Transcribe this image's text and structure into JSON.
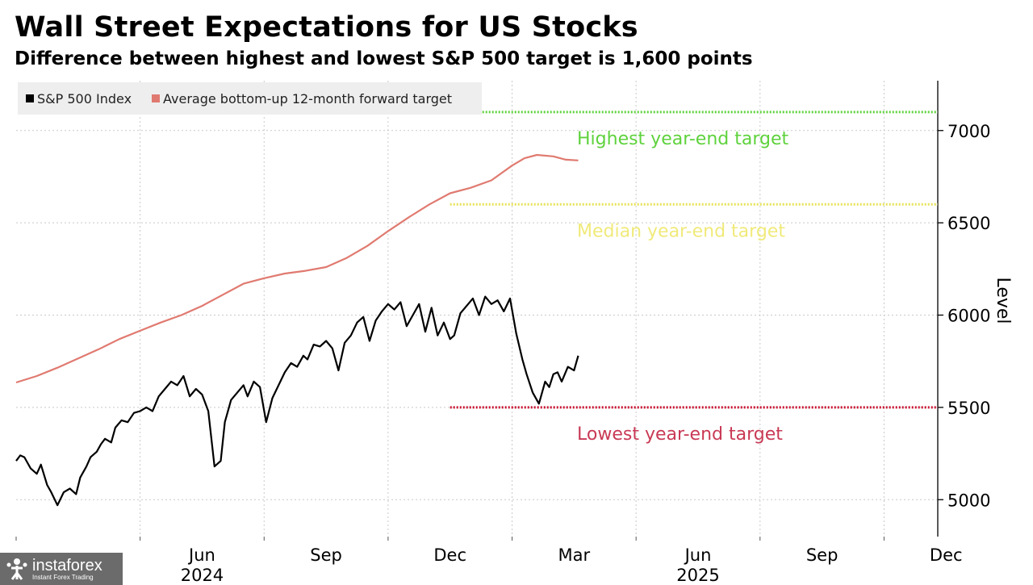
{
  "header": {
    "title": "Wall Street Expectations for US Stocks",
    "subtitle": "Difference between highest and lowest S&P 500 target is 1,600 points"
  },
  "watermark": {
    "brand": "instaforex",
    "tagline": "Instant Forex Trading",
    "icon": "people-logo-icon"
  },
  "chart_data": {
    "type": "line",
    "title": "Wall Street Expectations for US Stocks",
    "subtitle": "Difference between highest and lowest S&P 500 target is 1,600 points",
    "ylabel": "Level",
    "ylim": [
      4800,
      7270
    ],
    "yticks": [
      5000,
      5500,
      6000,
      6500,
      7000
    ],
    "xlim": [
      0,
      22.3
    ],
    "xticks": [
      {
        "label": "Jun",
        "m": 4.5
      },
      {
        "label": "Sep",
        "m": 7.5
      },
      {
        "label": "Dec",
        "m": 10.5
      },
      {
        "label": "Mar",
        "m": 13.5
      },
      {
        "label": "Jun",
        "m": 16.5
      },
      {
        "label": "Sep",
        "m": 19.5
      },
      {
        "label": "Dec",
        "m": 22.5
      }
    ],
    "vgrid": [
      3,
      6,
      9,
      12,
      15,
      18,
      21
    ],
    "years": [
      {
        "label": "2024",
        "m": 4.5
      },
      {
        "label": "2025",
        "m": 16.5
      }
    ],
    "grid": true,
    "legend": {
      "position": "top-left",
      "entries": [
        {
          "label": "S&P 500 Index",
          "color": "#000000"
        },
        {
          "label": "Average bottom-up 12-month forward target",
          "color": "#e07a70"
        }
      ]
    },
    "series": [
      {
        "name": "S&P 500 Index",
        "color": "#000000",
        "x": [
          0,
          0.1,
          0.2,
          0.35,
          0.5,
          0.6,
          0.75,
          0.85,
          1.0,
          1.15,
          1.3,
          1.45,
          1.55,
          1.7,
          1.8,
          1.95,
          2.05,
          2.15,
          2.3,
          2.4,
          2.55,
          2.7,
          2.85,
          3.0,
          3.15,
          3.3,
          3.45,
          3.6,
          3.75,
          3.9,
          4.05,
          4.2,
          4.35,
          4.5,
          4.65,
          4.8,
          4.95,
          5.05,
          5.2,
          5.35,
          5.5,
          5.6,
          5.75,
          5.9,
          6.05,
          6.2,
          6.35,
          6.5,
          6.65,
          6.8,
          6.95,
          7.05,
          7.2,
          7.35,
          7.5,
          7.65,
          7.8,
          7.95,
          8.1,
          8.25,
          8.4,
          8.55,
          8.7,
          8.85,
          9.0,
          9.15,
          9.3,
          9.45,
          9.6,
          9.75,
          9.9,
          10.05,
          10.2,
          10.35,
          10.5,
          10.6,
          10.75,
          10.9,
          11.05,
          11.2,
          11.35,
          11.5,
          11.65,
          11.8,
          11.95,
          12.1,
          12.25,
          12.35,
          12.5,
          12.65,
          12.8,
          12.9,
          13.0,
          13.1,
          13.2,
          13.35,
          13.5,
          13.6
        ],
        "values": [
          5210,
          5240,
          5230,
          5170,
          5140,
          5190,
          5080,
          5040,
          4970,
          5040,
          5060,
          5030,
          5120,
          5180,
          5230,
          5260,
          5300,
          5330,
          5310,
          5390,
          5430,
          5420,
          5470,
          5480,
          5500,
          5480,
          5560,
          5600,
          5640,
          5620,
          5670,
          5560,
          5600,
          5570,
          5480,
          5180,
          5210,
          5420,
          5540,
          5580,
          5620,
          5560,
          5640,
          5610,
          5420,
          5550,
          5620,
          5690,
          5740,
          5720,
          5780,
          5760,
          5840,
          5830,
          5860,
          5820,
          5700,
          5850,
          5890,
          5960,
          5990,
          5860,
          5970,
          6020,
          6060,
          6030,
          6070,
          5940,
          6000,
          6060,
          5910,
          6040,
          5890,
          5960,
          5870,
          5890,
          6010,
          6050,
          6090,
          6000,
          6100,
          6060,
          6080,
          6020,
          6090,
          5900,
          5760,
          5680,
          5580,
          5520,
          5640,
          5610,
          5680,
          5690,
          5640,
          5720,
          5700,
          5780
        ]
      },
      {
        "name": "Average bottom-up 12-month forward target",
        "color": "#e07a70",
        "x": [
          0,
          0.5,
          1.0,
          1.5,
          2.0,
          2.5,
          3.0,
          3.5,
          4.0,
          4.5,
          5.0,
          5.5,
          6.0,
          6.5,
          7.0,
          7.5,
          8.0,
          8.5,
          9.0,
          9.5,
          10.0,
          10.5,
          11.0,
          11.5,
          12.0,
          12.3,
          12.6,
          13.0,
          13.3,
          13.6
        ],
        "values": [
          5635,
          5670,
          5715,
          5765,
          5815,
          5870,
          5915,
          5960,
          6000,
          6050,
          6110,
          6170,
          6200,
          6225,
          6240,
          6260,
          6310,
          6375,
          6455,
          6530,
          6600,
          6660,
          6690,
          6730,
          6810,
          6850,
          6868,
          6860,
          6842,
          6838
        ]
      }
    ],
    "reference_lines": [
      {
        "label": "Highest year-end target",
        "value": 7100,
        "start_m": 10.5,
        "color": "#5ed23c",
        "label_color": "#5ed23c"
      },
      {
        "label": "Median year-end target",
        "value": 6600,
        "start_m": 10.5,
        "color": "#e6e255",
        "label_color": "#f0ea7a"
      },
      {
        "label": "Lowest year-end target",
        "value": 5500,
        "start_m": 10.5,
        "color": "#c8102e",
        "label_color": "#c93a55"
      }
    ]
  }
}
